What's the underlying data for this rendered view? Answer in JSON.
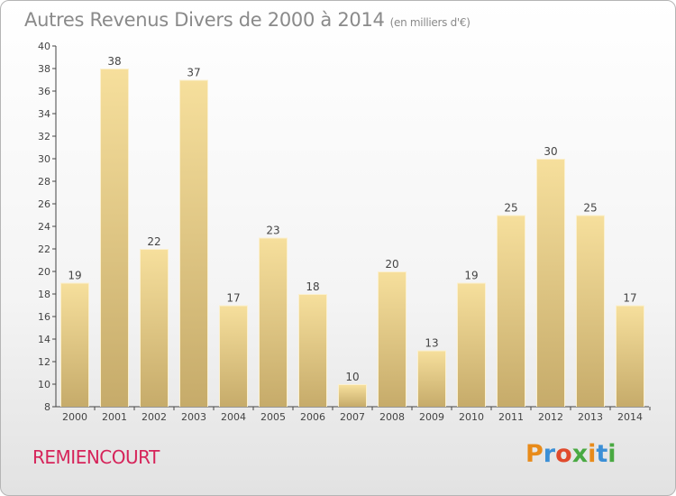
{
  "header": {
    "title": "Autres Revenus Divers de 2000 à 2014",
    "subtitle": "(en milliers d'€)"
  },
  "footer": {
    "commune": "REMIENCOURT",
    "logo_text": "Proxiti",
    "logo_colors": [
      "#e88b1a",
      "#3b8fd6",
      "#e04a2c",
      "#49a942",
      "#e88b1a",
      "#3b8fd6",
      "#49a942"
    ]
  },
  "colors": {
    "bar_light": "#f6df9c",
    "bar_dark": "#c6ab6a",
    "title": "#8a8a8a",
    "commune": "#d6245a"
  },
  "chart_data": {
    "type": "bar",
    "categories": [
      "2000",
      "2001",
      "2002",
      "2003",
      "2004",
      "2005",
      "2006",
      "2007",
      "2008",
      "2009",
      "2010",
      "2011",
      "2012",
      "2013",
      "2014"
    ],
    "values": [
      19,
      38,
      22,
      37,
      17,
      23,
      18,
      10,
      20,
      13,
      19,
      25,
      30,
      25,
      17
    ],
    "ylim": [
      8,
      40
    ],
    "yticks": [
      8,
      10,
      12,
      14,
      16,
      18,
      20,
      22,
      24,
      26,
      28,
      30,
      32,
      34,
      36,
      38,
      40
    ],
    "grid": false,
    "legend": "none"
  }
}
